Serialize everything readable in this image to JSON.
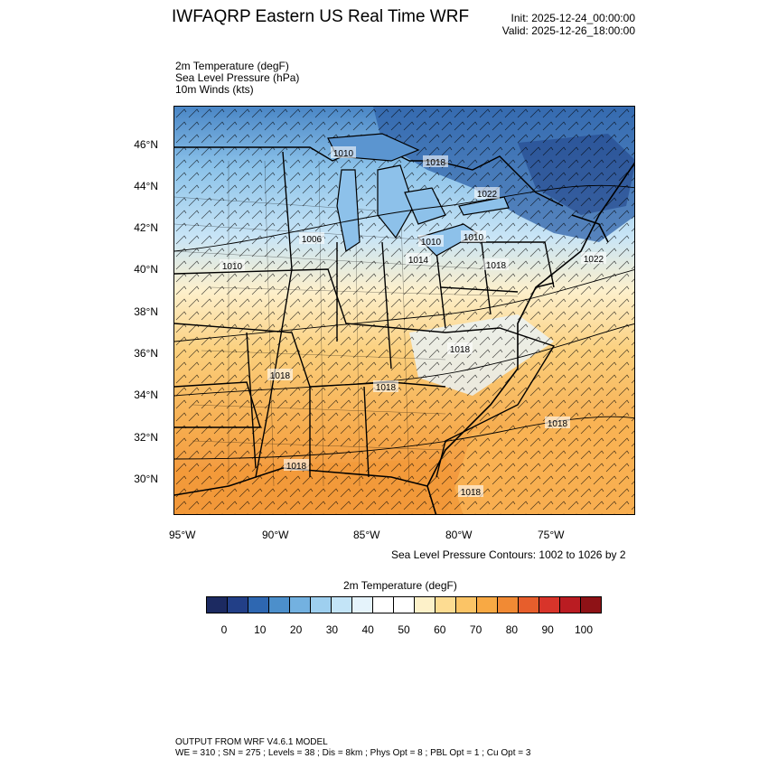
{
  "header": {
    "title": "IWFAQRP Eastern US Real Time WRF",
    "init": "Init: 2025-12-24_00:00:00",
    "valid": "Valid: 2025-12-26_18:00:00"
  },
  "fields": [
    "2m Temperature   (degF)",
    "Sea Level Pressure   (hPa)",
    "10m Winds   (kts)"
  ],
  "map": {
    "lat_labels": [
      "46°N",
      "44°N",
      "42°N",
      "40°N",
      "38°N",
      "36°N",
      "34°N",
      "32°N",
      "30°N"
    ],
    "lon_labels": [
      "95°W",
      "90°W",
      "85°W",
      "80°W",
      "75°W"
    ],
    "contour_labels": [
      "1010",
      "1018",
      "1022",
      "1006",
      "1010",
      "1010",
      "1014",
      "1018",
      "1010",
      "1018",
      "1018",
      "1018",
      "1018",
      "1022",
      "1018",
      "1018",
      "1018"
    ],
    "contour_note": "Sea Level Pressure Contours: 1002 to 1026 by 2"
  },
  "colorbar": {
    "title": "2m Temperature   (degF)",
    "colors": [
      "#1c2a61",
      "#223f87",
      "#2e67b1",
      "#4c8fcb",
      "#73b1e0",
      "#9ecfef",
      "#c3e4f7",
      "#e5f3fb",
      "#ffffff",
      "#ffffff",
      "#fdf1c9",
      "#fddc92",
      "#fbc466",
      "#f8a944",
      "#f18a34",
      "#e75e2c",
      "#d8342a",
      "#ba1c22",
      "#8e1216"
    ],
    "labels": [
      "0",
      "10",
      "20",
      "30",
      "40",
      "50",
      "60",
      "70",
      "80",
      "90",
      "100"
    ]
  },
  "footer": {
    "line1": "OUTPUT FROM WRF V4.6.1 MODEL",
    "line2": "WE = 310 ; SN = 275 ; Levels = 38 ; Dis = 8km ; Phys Opt = 8 ; PBL Opt = 1 ; Cu Opt = 3"
  }
}
